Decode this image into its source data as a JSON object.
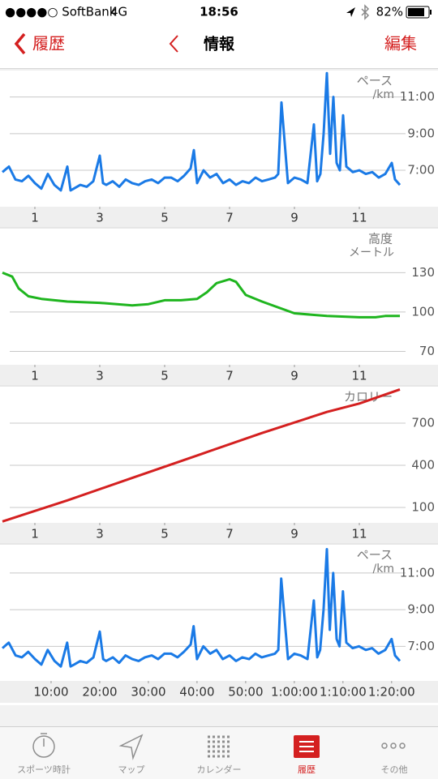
{
  "status_bar": {
    "carrier": "●●●●○ SoftBank",
    "network": "4G",
    "time": "18:56",
    "battery": "82%"
  },
  "nav": {
    "back": "履歴",
    "title": "情報",
    "edit": "編集"
  },
  "chart_data": [
    {
      "type": "line",
      "title": "ペース",
      "unit": "/km",
      "color": "#1a7ae6",
      "grid": true,
      "x": [
        0,
        0.2,
        0.4,
        0.6,
        0.8,
        1.0,
        1.2,
        1.4,
        1.6,
        1.8,
        2.0,
        2.1,
        2.2,
        2.4,
        2.6,
        2.8,
        3.0,
        3.1,
        3.2,
        3.4,
        3.6,
        3.8,
        4.0,
        4.2,
        4.4,
        4.6,
        4.8,
        5.0,
        5.2,
        5.4,
        5.6,
        5.8,
        5.9,
        6.0,
        6.2,
        6.4,
        6.6,
        6.8,
        7.0,
        7.2,
        7.4,
        7.6,
        7.8,
        8.0,
        8.2,
        8.4,
        8.5,
        8.6,
        8.8,
        9.0,
        9.2,
        9.4,
        9.6,
        9.7,
        9.8,
        9.9,
        10.0,
        10.1,
        10.2,
        10.3,
        10.4,
        10.5,
        10.6,
        10.8,
        11.0,
        11.2,
        11.4,
        11.6,
        11.8,
        12.0,
        12.1,
        12.25
      ],
      "values": [
        6.9,
        7.2,
        6.5,
        6.4,
        6.7,
        6.3,
        6.0,
        6.8,
        6.2,
        5.9,
        7.2,
        5.9,
        6.0,
        6.2,
        6.1,
        6.4,
        7.8,
        6.3,
        6.2,
        6.4,
        6.1,
        6.5,
        6.3,
        6.2,
        6.4,
        6.5,
        6.3,
        6.6,
        6.6,
        6.4,
        6.7,
        7.1,
        8.1,
        6.3,
        7.0,
        6.6,
        6.8,
        6.3,
        6.5,
        6.2,
        6.4,
        6.3,
        6.6,
        6.4,
        6.5,
        6.6,
        6.8,
        10.7,
        6.3,
        6.6,
        6.5,
        6.3,
        9.5,
        6.4,
        6.8,
        9.0,
        12.3,
        7.9,
        11.0,
        7.4,
        7.0,
        10.0,
        7.2,
        6.9,
        7.0,
        6.8,
        6.9,
        6.6,
        6.8,
        7.4,
        6.5,
        6.2
      ],
      "xlim": [
        0,
        13.3
      ],
      "xticks": [
        1,
        3,
        5,
        7,
        9,
        11
      ],
      "ylim": [
        5.1,
        12.4
      ],
      "yticks": [
        {
          "value": 11,
          "label": "11:00"
        },
        {
          "value": 9,
          "label": "9:00"
        },
        {
          "value": 7,
          "label": "7:00"
        }
      ]
    },
    {
      "type": "line",
      "title": "高度",
      "unit": "メートル",
      "color": "#1fb51f",
      "grid": true,
      "x": [
        0,
        0.3,
        0.5,
        0.8,
        1.2,
        2,
        3,
        4,
        4.5,
        5,
        5.5,
        6,
        6.3,
        6.6,
        7,
        7.2,
        7.5,
        8,
        9,
        10,
        11,
        11.5,
        11.8,
        12.25
      ],
      "values": [
        130,
        127,
        118,
        112,
        110,
        108,
        107,
        105,
        106,
        109,
        109,
        110,
        115,
        122,
        125,
        123,
        113,
        108,
        99,
        97,
        96,
        96,
        97,
        97
      ],
      "xlim": [
        0,
        13.3
      ],
      "xticks": [
        1,
        3,
        5,
        7,
        9,
        11
      ],
      "ylim": [
        61,
        163
      ],
      "yticks": [
        130,
        100,
        70
      ]
    },
    {
      "type": "line",
      "title": "カロリー",
      "color": "#d42020",
      "grid": true,
      "x": [
        0,
        2,
        4,
        6,
        8,
        10,
        11,
        12.25
      ],
      "values": [
        0,
        150,
        310,
        470,
        630,
        780,
        840,
        940
      ],
      "xlim": [
        0,
        13.3
      ],
      "xticks": [
        1,
        3,
        5,
        7,
        9,
        11
      ],
      "ylim": [
        2,
        954
      ],
      "yticks": [
        700,
        400,
        100
      ]
    },
    {
      "type": "line",
      "title": "ペース",
      "unit": "/km",
      "color": "#1a7ae6",
      "grid": true,
      "x": [
        0,
        1.3,
        2.7,
        4.0,
        5.3,
        6.7,
        8.0,
        9.3,
        10.7,
        12.0,
        13.3,
        14.0,
        14.7,
        16.0,
        17.3,
        18.7,
        20.0,
        20.7,
        21.3,
        22.7,
        24.0,
        25.3,
        26.7,
        28.0,
        29.3,
        30.7,
        32.0,
        33.3,
        34.7,
        36.0,
        37.3,
        38.7,
        39.3,
        40.0,
        41.3,
        42.7,
        44.0,
        45.3,
        46.7,
        48.0,
        49.3,
        50.7,
        52.0,
        53.3,
        54.7,
        56.0,
        56.7,
        57.3,
        58.7,
        60.0,
        61.3,
        62.7,
        64.0,
        64.7,
        65.3,
        66.0,
        66.7,
        67.3,
        68.0,
        68.7,
        69.3,
        70.0,
        70.7,
        72.0,
        73.3,
        74.7,
        76.0,
        77.3,
        78.7,
        80.0,
        80.7,
        81.7
      ],
      "values": [
        6.9,
        7.2,
        6.5,
        6.4,
        6.7,
        6.3,
        6.0,
        6.8,
        6.2,
        5.9,
        7.2,
        5.9,
        6.0,
        6.2,
        6.1,
        6.4,
        7.8,
        6.3,
        6.2,
        6.4,
        6.1,
        6.5,
        6.3,
        6.2,
        6.4,
        6.5,
        6.3,
        6.6,
        6.6,
        6.4,
        6.7,
        7.1,
        8.1,
        6.3,
        7.0,
        6.6,
        6.8,
        6.3,
        6.5,
        6.2,
        6.4,
        6.3,
        6.6,
        6.4,
        6.5,
        6.6,
        6.8,
        10.7,
        6.3,
        6.6,
        6.5,
        6.3,
        9.5,
        6.4,
        6.8,
        9.0,
        12.3,
        7.9,
        11.0,
        7.4,
        7.0,
        10.0,
        7.2,
        6.9,
        7.0,
        6.8,
        6.9,
        6.6,
        6.8,
        7.4,
        6.5,
        6.2
      ],
      "xlim": [
        0,
        88.7
      ],
      "xticks": [
        {
          "value": 10,
          "label": "10:00"
        },
        {
          "value": 20,
          "label": "20:00"
        },
        {
          "value": 30,
          "label": "30:00"
        },
        {
          "value": 40,
          "label": "40:00"
        },
        {
          "value": 50,
          "label": "50:00"
        },
        {
          "value": 60,
          "label": "1:00:00"
        },
        {
          "value": 70,
          "label": "1:10:00"
        },
        {
          "value": 80,
          "label": "1:20:00"
        }
      ],
      "ylim": [
        5.2,
        12.5
      ],
      "yticks": [
        {
          "value": 11,
          "label": "11:00"
        },
        {
          "value": 9,
          "label": "9:00"
        },
        {
          "value": 7,
          "label": "7:00"
        }
      ]
    }
  ],
  "tab_bar": {
    "items": [
      "スポーツ時計",
      "マップ",
      "カレンダー",
      "履歴",
      "その他"
    ],
    "active": 3
  }
}
